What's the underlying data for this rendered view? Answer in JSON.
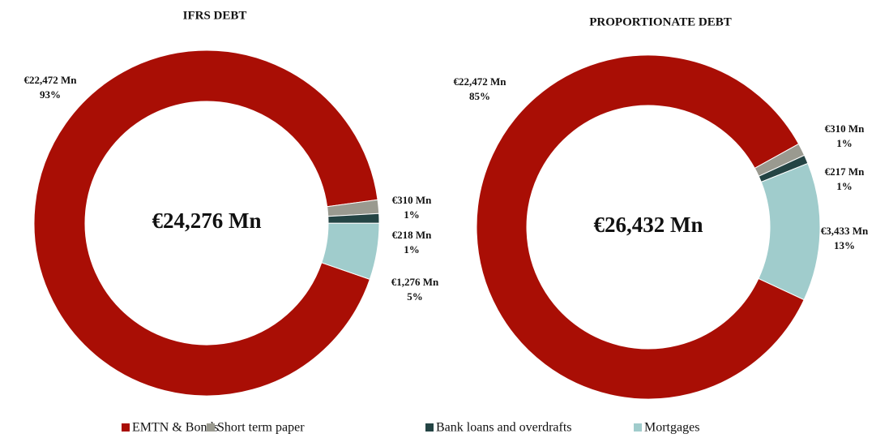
{
  "chart_data": [
    {
      "type": "donut",
      "title": "IFRS DEBT",
      "center_label": "€24,276 Mn",
      "categories": [
        "EMTN & Bonds",
        "Short term paper",
        "Bank loans and overdrafts",
        "Mortgages"
      ],
      "values": [
        22472,
        310,
        218,
        1276
      ],
      "value_labels": [
        "€22,472 Mn",
        "€310 Mn",
        "€218 Mn",
        "€1,276 Mn"
      ],
      "percents": [
        93,
        1,
        1,
        5
      ],
      "percent_labels": [
        "93%",
        "1%",
        "1%",
        "5%"
      ],
      "colors": [
        "#a90e05",
        "#9a9a90",
        "#244444",
        "#a0cccc"
      ]
    },
    {
      "type": "donut",
      "title": "PROPORTIONATE DEBT",
      "center_label": "€26,432 Mn",
      "categories": [
        "EMTN & Bonds",
        "Short term paper",
        "Bank loans and overdrafts",
        "Mortgages"
      ],
      "values": [
        22472,
        310,
        217,
        3433
      ],
      "value_labels": [
        "€22,472 Mn",
        "€310 Mn",
        "€217 Mn",
        "€3,433 Mn"
      ],
      "percents": [
        85,
        1,
        1,
        13
      ],
      "percent_labels": [
        "85%",
        "1%",
        "1%",
        "13%"
      ],
      "colors": [
        "#a90e05",
        "#9a9a90",
        "#244444",
        "#a0cccc"
      ]
    }
  ]
}
